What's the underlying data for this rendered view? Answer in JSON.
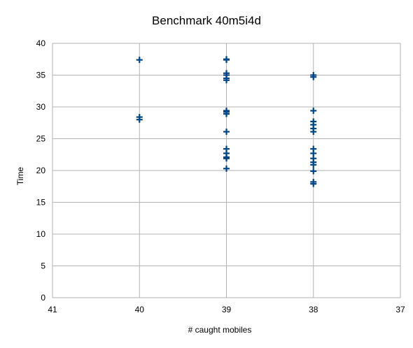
{
  "chart_data": {
    "type": "scatter",
    "title": "Benchmark 40m5i4d",
    "xlabel": "# caught mobiles",
    "ylabel": "Time",
    "xlim": [
      41,
      37
    ],
    "x_reversed": true,
    "ylim": [
      0,
      40
    ],
    "xticks": [
      "41",
      "40",
      "39",
      "38",
      "37"
    ],
    "yticks": [
      "0",
      "5",
      "10",
      "15",
      "20",
      "25",
      "30",
      "35",
      "40"
    ],
    "grid": true,
    "legend": "none",
    "marker": "cross",
    "color": "#004586",
    "series": [
      {
        "points": [
          {
            "x": 40,
            "y": 37.4
          },
          {
            "x": 40,
            "y": 28.4
          },
          {
            "x": 40,
            "y": 28.0
          },
          {
            "x": 39,
            "y": 37.5
          },
          {
            "x": 39,
            "y": 37.4
          },
          {
            "x": 39,
            "y": 35.3
          },
          {
            "x": 39,
            "y": 35.0
          },
          {
            "x": 39,
            "y": 34.5
          },
          {
            "x": 39,
            "y": 34.2
          },
          {
            "x": 39,
            "y": 29.4
          },
          {
            "x": 39,
            "y": 29.2
          },
          {
            "x": 39,
            "y": 28.9
          },
          {
            "x": 39,
            "y": 26.1
          },
          {
            "x": 39,
            "y": 23.4
          },
          {
            "x": 39,
            "y": 22.7
          },
          {
            "x": 39,
            "y": 22.1
          },
          {
            "x": 39,
            "y": 21.9
          },
          {
            "x": 39,
            "y": 20.3
          },
          {
            "x": 38,
            "y": 35.0
          },
          {
            "x": 38,
            "y": 34.7
          },
          {
            "x": 38,
            "y": 29.4
          },
          {
            "x": 38,
            "y": 27.7
          },
          {
            "x": 38,
            "y": 27.2
          },
          {
            "x": 38,
            "y": 26.6
          },
          {
            "x": 38,
            "y": 26.1
          },
          {
            "x": 38,
            "y": 23.4
          },
          {
            "x": 38,
            "y": 22.7
          },
          {
            "x": 38,
            "y": 21.9
          },
          {
            "x": 38,
            "y": 21.3
          },
          {
            "x": 38,
            "y": 20.9
          },
          {
            "x": 38,
            "y": 19.9
          },
          {
            "x": 38,
            "y": 18.2
          },
          {
            "x": 38,
            "y": 17.9
          }
        ]
      }
    ]
  }
}
